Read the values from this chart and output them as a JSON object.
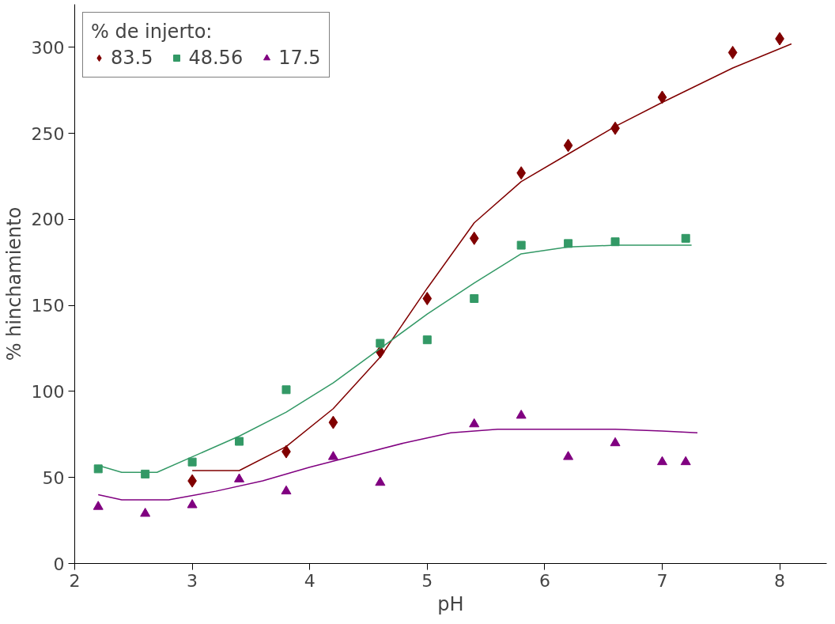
{
  "chart_data": {
    "type": "scatter",
    "xlabel": "pH",
    "ylabel": "% hinchamiento",
    "legend_title": "% de injerto:",
    "legend": "top left",
    "grid": false,
    "xlim": [
      2,
      8.4
    ],
    "ylim": [
      0,
      325
    ],
    "xticks": [
      2,
      3,
      4,
      5,
      6,
      7,
      8
    ],
    "yticks": [
      0,
      50,
      100,
      150,
      200,
      250,
      300
    ],
    "series": [
      {
        "name": "83.5",
        "color": "#800000",
        "marker": "diamond",
        "x": [
          3,
          3.8,
          4.2,
          4.6,
          5,
          5.4,
          5.8,
          6.2,
          6.6,
          7,
          7.6,
          8
        ],
        "values": [
          48,
          65,
          82,
          123,
          154,
          189,
          227,
          243,
          253,
          271,
          297,
          305
        ]
      },
      {
        "name": "48.56",
        "color": "#339966",
        "marker": "square",
        "x": [
          2.2,
          2.6,
          3,
          3.4,
          3.8,
          4.6,
          5,
          5.4,
          5.8,
          6.2,
          6.6,
          7.2
        ],
        "values": [
          55,
          52,
          59,
          71,
          101,
          128,
          130,
          154,
          185,
          186,
          187,
          189
        ]
      },
      {
        "name": "17.5",
        "color": "#800080",
        "marker": "triangle",
        "x": [
          2.2,
          2.6,
          3,
          3.4,
          3.8,
          4.2,
          4.6,
          5.4,
          5.8,
          6.2,
          6.6,
          7,
          7.2
        ],
        "values": [
          33,
          29,
          34,
          49,
          42,
          62,
          47,
          81,
          86,
          62,
          70,
          59,
          59
        ]
      },
      {
        "type": "line",
        "color": "#800000",
        "x": [
          3,
          3.4,
          3.8,
          4.2,
          4.6,
          5,
          5.4,
          5.8,
          6.2,
          6.6,
          7,
          7.6,
          8.1
        ],
        "values": [
          54,
          54,
          68,
          90,
          120,
          160,
          198,
          222,
          238,
          254,
          268,
          288,
          302
        ]
      },
      {
        "type": "line",
        "color": "#339966",
        "x": [
          2.2,
          2.4,
          2.7,
          3,
          3.4,
          3.8,
          4.2,
          4.6,
          5,
          5.4,
          5.8,
          6.2,
          6.6,
          7.25
        ],
        "values": [
          57,
          53,
          53,
          62,
          74,
          88,
          105,
          125,
          145,
          163,
          180,
          184,
          185,
          185
        ]
      },
      {
        "type": "line",
        "color": "#800080",
        "x": [
          2.2,
          2.4,
          2.8,
          3.2,
          3.6,
          4,
          4.4,
          4.8,
          5.2,
          5.6,
          6,
          6.6,
          7,
          7.3
        ],
        "values": [
          40,
          37,
          37,
          42,
          48,
          56,
          63,
          70,
          76,
          78,
          78,
          78,
          77,
          76
        ]
      }
    ]
  }
}
